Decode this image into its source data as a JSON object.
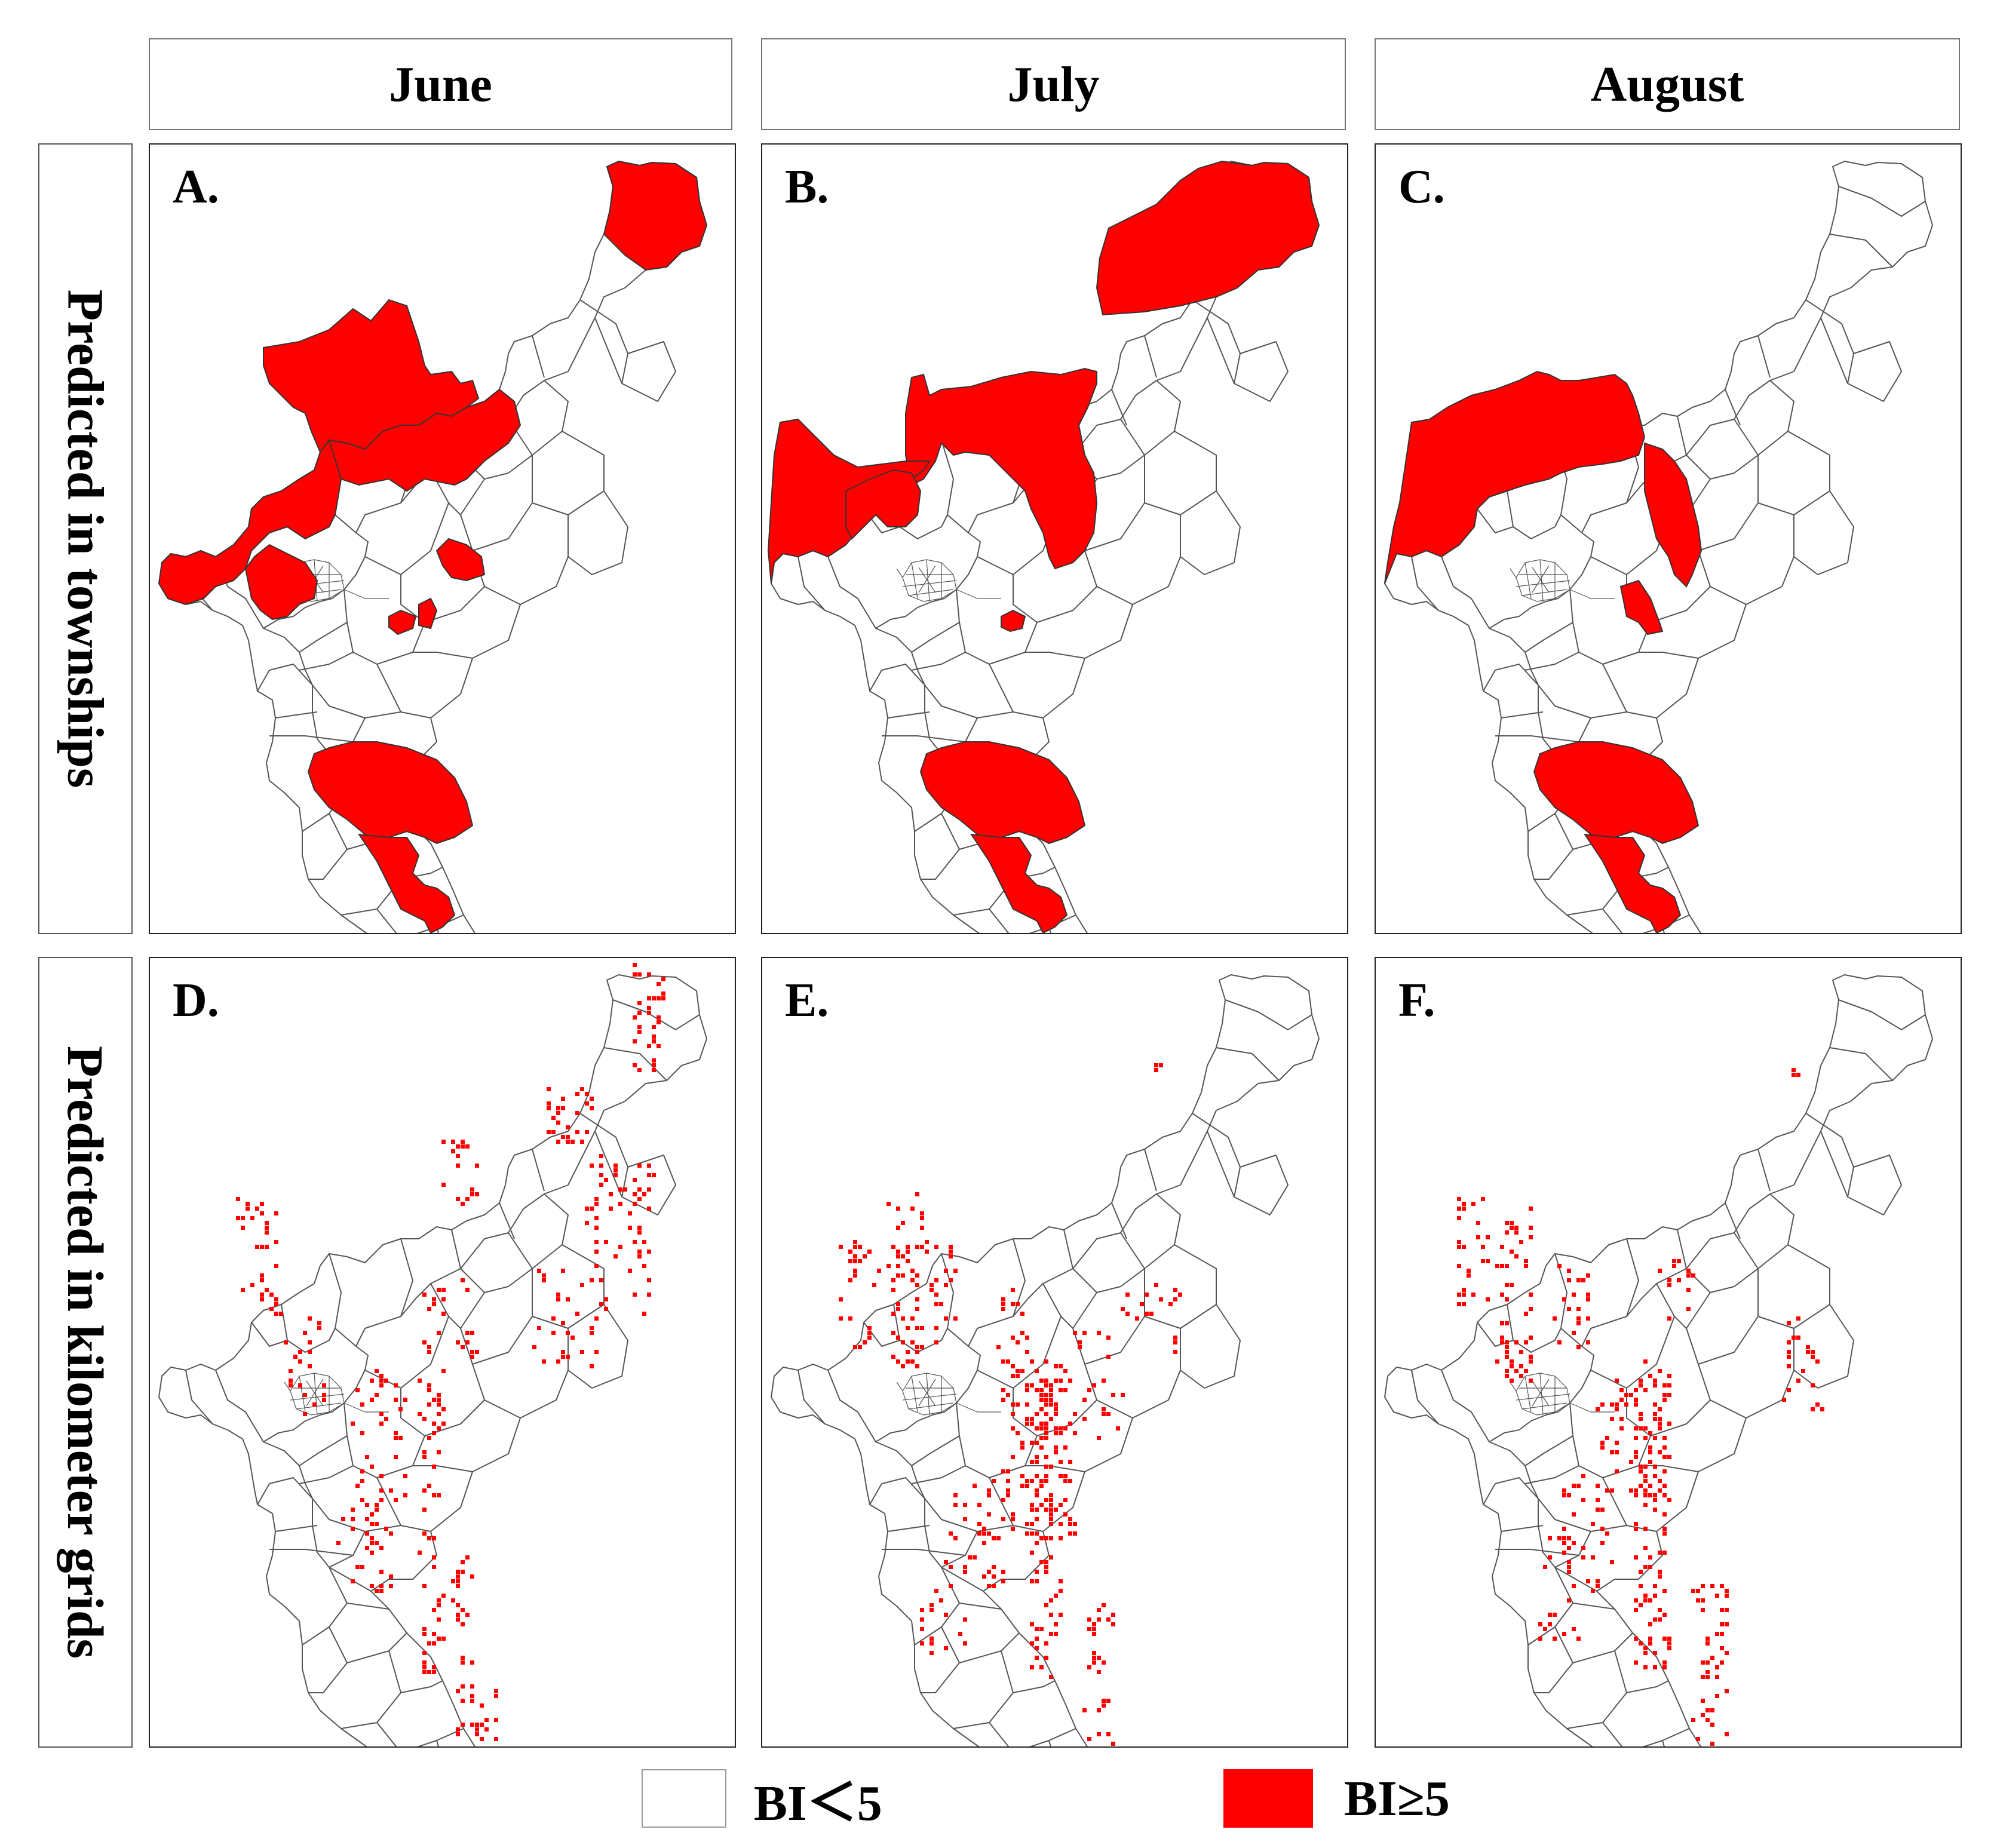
{
  "columns": {
    "june": "June",
    "july": "July",
    "august": "August"
  },
  "rows": {
    "townships": "Predicted in townships",
    "grids": "Predicted in kilometer grids"
  },
  "panels": {
    "a": {
      "letter": "A.",
      "month": "June",
      "level": "townships"
    },
    "b": {
      "letter": "B.",
      "month": "July",
      "level": "townships"
    },
    "c": {
      "letter": "C.",
      "month": "August",
      "level": "townships"
    },
    "d": {
      "letter": "D.",
      "month": "June",
      "level": "kilometer grids"
    },
    "e": {
      "letter": "E.",
      "month": "July",
      "level": "kilometer grids"
    },
    "f": {
      "letter": "F.",
      "month": "August",
      "level": "kilometer grids"
    }
  },
  "legend": {
    "low": {
      "label": "BI＜5",
      "color": "#ffffff"
    },
    "high": {
      "label": "BI≥5",
      "color": "#ff0000"
    }
  },
  "colors": {
    "column_header_bg": "#f4a05c",
    "row_header_bg": "#4aaac6",
    "boundary": "#555555",
    "risk": "#ff0000"
  }
}
